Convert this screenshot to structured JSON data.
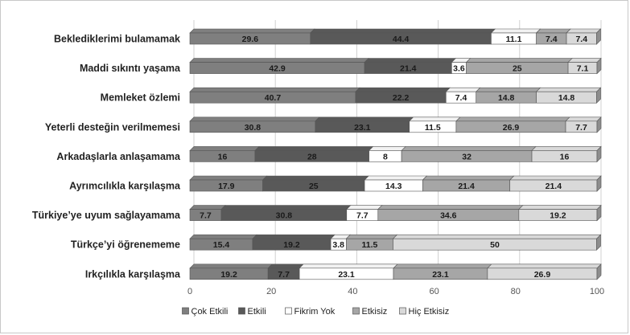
{
  "chart_data": {
    "type": "bar",
    "orientation": "horizontal",
    "stacked": true,
    "percent": true,
    "categories": [
      "Beklediklerimi bulamamak",
      "Maddi sıkıntı yaşama",
      "Memleket özlemi",
      "Yeterli desteğin verilmemesi",
      "Arkadaşlarla anlaşamama",
      "Ayrımcılıkla karşılaşma",
      "Türkiye’ye uyum sağlayamama",
      "Türkçe’yi öğrenememe",
      "Irkçılıkla karşılaşma"
    ],
    "series": [
      {
        "name": "Çok Etkili",
        "color": "#7f7f7f",
        "text_color": "#1a1a1a",
        "values": [
          29.6,
          42.9,
          40.7,
          30.8,
          16,
          17.9,
          7.7,
          15.4,
          19.2
        ],
        "labels": [
          "29.6",
          "42.9",
          "40.7",
          "30.8",
          "16",
          "17.9",
          "7.7",
          "15.4",
          "19.2"
        ]
      },
      {
        "name": "Etkili",
        "color": "#595959",
        "text_color": "#1a1a1a",
        "values": [
          44.4,
          21.4,
          22.2,
          23.1,
          28,
          25,
          30.8,
          19.2,
          7.7
        ],
        "labels": [
          "44.4",
          "21.4",
          "22.2",
          "23.1",
          "28",
          "25",
          "30.8",
          "19.2",
          "7.7"
        ]
      },
      {
        "name": "Fikrim Yok",
        "color": "#ffffff",
        "text_color": "#1a1a1a",
        "values": [
          11.1,
          3.6,
          7.4,
          11.5,
          8,
          14.3,
          7.7,
          3.8,
          23.1
        ],
        "labels": [
          "11.1",
          "3.6",
          "7.4",
          "11.5",
          "8",
          "14.3",
          "7.7",
          "3.8",
          "23.1"
        ]
      },
      {
        "name": "Etkisiz",
        "color": "#a6a6a6",
        "text_color": "#1a1a1a",
        "values": [
          7.4,
          25,
          14.8,
          26.9,
          32,
          21.4,
          34.6,
          11.5,
          23.1
        ],
        "labels": [
          "7.4",
          "25",
          "14.8",
          "26.9",
          "32",
          "21.4",
          "34.6",
          "11.5",
          "23.1"
        ]
      },
      {
        "name": "Hiç Etkisiz",
        "color": "#d9d9d9",
        "text_color": "#1a1a1a",
        "values": [
          7.4,
          7.1,
          14.8,
          7.7,
          16,
          21.4,
          19.2,
          50,
          26.9
        ],
        "labels": [
          "7.4",
          "7.1",
          "14.8",
          "7.7",
          "16",
          "21.4",
          "19.2",
          "50",
          "26.9"
        ]
      }
    ],
    "x_ticks": [
      "0",
      "20",
      "40",
      "60",
      "80",
      "100"
    ],
    "xlim": [
      0,
      100
    ],
    "title": "",
    "xlabel": "",
    "ylabel": "",
    "grid": "vertical",
    "legend_position": "bottom"
  }
}
